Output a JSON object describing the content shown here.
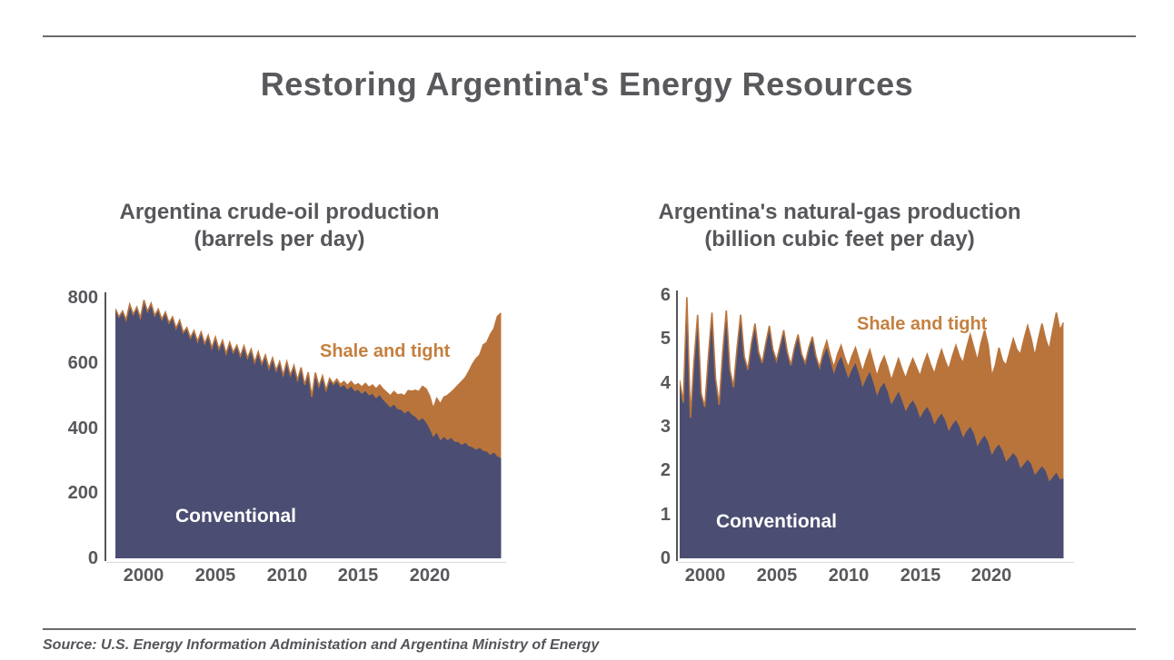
{
  "header": {
    "title": "Restoring Argentina's Energy Resources"
  },
  "source": {
    "text": "Source: U.S. Energy Information Administation and Argentina Ministry of Energy"
  },
  "colors": {
    "conventional_fill": "#4B4E72",
    "shale_fill": "#B9743C",
    "shale_label_text": "#C4803F",
    "conventional_label_text": "#FFFFFF",
    "axis_text": "#58585C",
    "title_text": "#59595D",
    "rule": "#6B6B6F"
  },
  "chart_data": [
    {
      "type": "area",
      "stacked": true,
      "title_lines": [
        "Argentina crude-oil production",
        "(barrels per day)"
      ],
      "labels": {
        "conventional": "Conventional",
        "shale": "Shale and tight"
      },
      "xlim": [
        1998,
        2025.1
      ],
      "ylim": [
        0,
        800
      ],
      "x_ticks": [
        2000,
        2005,
        2010,
        2015,
        2020
      ],
      "y_ticks": [
        0,
        200,
        400,
        600,
        800
      ],
      "grid": false,
      "legend": "inside-area-labels",
      "x_start": 1998.0,
      "x_step": 0.25,
      "series": [
        {
          "name": "Conventional",
          "values": [
            766,
            741,
            759,
            732,
            780,
            749,
            771,
            738,
            793,
            758,
            783,
            745,
            765,
            734,
            756,
            723,
            741,
            706,
            731,
            693,
            708,
            677,
            699,
            666,
            695,
            659,
            685,
            646,
            679,
            642,
            669,
            628,
            663,
            632,
            654,
            621,
            652,
            615,
            642,
            601,
            634,
            597,
            624,
            583,
            615,
            576,
            604,
            562,
            604,
            562,
            592,
            547,
            586,
            533,
            571,
            496,
            570,
            528,
            558,
            513,
            548,
            531,
            543,
            525,
            532,
            518,
            528,
            513,
            517,
            505,
            514,
            500,
            505,
            491,
            501,
            486,
            475,
            463,
            472,
            458,
            456,
            445,
            453,
            441,
            434,
            422,
            431,
            417,
            398,
            372,
            386,
            362,
            373,
            362,
            370,
            358,
            357,
            348,
            355,
            344,
            341,
            333,
            339,
            330,
            328,
            317,
            325,
            313,
            308
          ]
        },
        {
          "name": "Shale and tight",
          "values": [
            0,
            0,
            0,
            0,
            0,
            0,
            0,
            0,
            0,
            0,
            0,
            0,
            0,
            0,
            0,
            0,
            0,
            0,
            0,
            0,
            0,
            0,
            0,
            0,
            0,
            0,
            0,
            0,
            0,
            0,
            0,
            0,
            0,
            0,
            0,
            0,
            0,
            0,
            0,
            0,
            0,
            0,
            0,
            0,
            0,
            0,
            0,
            0,
            0,
            0,
            0,
            0,
            0,
            0,
            0,
            0,
            0,
            0,
            2,
            3,
            4,
            5,
            7,
            9,
            11,
            13,
            15,
            17,
            19,
            21,
            23,
            25,
            27,
            29,
            31,
            33,
            34,
            36,
            40,
            44,
            48,
            54,
            62,
            72,
            82,
            90,
            97,
            103,
            100,
            88,
            105,
            112,
            122,
            138,
            140,
            162,
            175,
            195,
            200,
            230,
            255,
            280,
            285,
            325,
            335,
            370,
            380,
            430,
            445
          ]
        }
      ]
    },
    {
      "type": "area",
      "stacked": true,
      "title_lines": [
        "Argentina's natural-gas production",
        "(billion cubic feet per day)"
      ],
      "labels": {
        "conventional": "Conventional",
        "shale": "Shale and tight"
      },
      "xlim": [
        1998.25,
        2025.1
      ],
      "ylim": [
        0,
        6
      ],
      "x_ticks": [
        2000,
        2005,
        2010,
        2015,
        2020
      ],
      "y_ticks": [
        0,
        1,
        2,
        3,
        4,
        5,
        6
      ],
      "grid": false,
      "legend": "inside-area-labels",
      "x_start": 1998.25,
      "x_step": 0.25,
      "series": [
        {
          "name": "Conventional",
          "values": [
            4.05,
            3.55,
            5.95,
            3.2,
            4.5,
            5.55,
            3.75,
            3.45,
            4.6,
            5.6,
            4.1,
            3.5,
            4.7,
            5.65,
            4.3,
            3.9,
            4.8,
            5.55,
            4.6,
            4.3,
            4.9,
            5.35,
            4.7,
            4.45,
            4.9,
            5.3,
            4.75,
            4.5,
            4.85,
            5.2,
            4.7,
            4.4,
            4.8,
            5.1,
            4.65,
            4.45,
            4.8,
            5.05,
            4.6,
            4.3,
            4.6,
            4.8,
            4.5,
            4.2,
            4.45,
            4.6,
            4.35,
            4.1,
            4.3,
            4.45,
            4.2,
            3.9,
            4.1,
            4.25,
            4.0,
            3.7,
            3.9,
            4.0,
            3.8,
            3.5,
            3.65,
            3.8,
            3.6,
            3.35,
            3.5,
            3.6,
            3.45,
            3.2,
            3.35,
            3.45,
            3.3,
            3.05,
            3.2,
            3.3,
            3.15,
            2.9,
            3.05,
            3.15,
            3.0,
            2.75,
            2.9,
            3.0,
            2.85,
            2.55,
            2.7,
            2.8,
            2.65,
            2.35,
            2.5,
            2.6,
            2.45,
            2.2,
            2.3,
            2.4,
            2.3,
            2.05,
            2.15,
            2.25,
            2.15,
            1.9,
            2.0,
            2.1,
            2.0,
            1.75,
            1.85,
            1.95,
            1.8,
            1.82
          ]
        },
        {
          "name": "Shale and tight",
          "values": [
            0,
            0,
            0,
            0,
            0,
            0,
            0,
            0,
            0,
            0,
            0,
            0,
            0,
            0,
            0,
            0,
            0,
            0,
            0,
            0,
            0,
            0,
            0,
            0,
            0,
            0,
            0,
            0,
            0,
            0,
            0,
            0,
            0,
            0,
            0,
            0,
            0,
            0,
            0,
            0.05,
            0.1,
            0.15,
            0.12,
            0.15,
            0.2,
            0.25,
            0.22,
            0.25,
            0.3,
            0.35,
            0.32,
            0.35,
            0.42,
            0.5,
            0.45,
            0.45,
            0.52,
            0.6,
            0.55,
            0.55,
            0.65,
            0.75,
            0.7,
            0.75,
            0.85,
            0.95,
            0.9,
            0.95,
            1.08,
            1.2,
            1.1,
            1.15,
            1.3,
            1.45,
            1.35,
            1.4,
            1.55,
            1.7,
            1.6,
            1.7,
            1.9,
            2.1,
            1.95,
            1.95,
            2.2,
            2.4,
            2.2,
            1.8,
            1.9,
            2.2,
            2.05,
            2.2,
            2.4,
            2.6,
            2.45,
            2.6,
            2.85,
            3.05,
            2.85,
            2.7,
            3.0,
            3.25,
            3.0,
            3.0,
            3.35,
            3.65,
            3.4,
            3.55
          ]
        }
      ]
    }
  ]
}
